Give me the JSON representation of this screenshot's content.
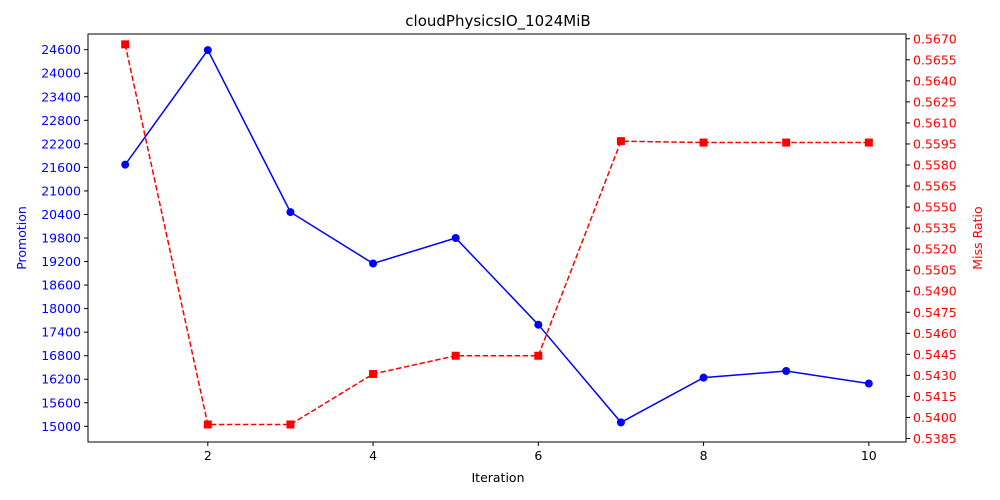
{
  "chart_data": {
    "type": "line",
    "title": "cloudPhysicsIO_1024MiB",
    "xlabel": "Iteration",
    "ylabel_left": "Promotion",
    "ylabel_right": "Miss Ratio",
    "x": [
      1,
      2,
      3,
      4,
      5,
      6,
      7,
      8,
      9,
      10
    ],
    "xlim": [
      0.55,
      10.45
    ],
    "x_ticks": [
      2,
      4,
      6,
      8,
      10
    ],
    "ylim_left": [
      14600,
      25000
    ],
    "y_ticks_left": [
      15000,
      15600,
      16200,
      16800,
      17400,
      18000,
      18600,
      19200,
      19800,
      20400,
      21000,
      21600,
      22200,
      22800,
      23400,
      24000,
      24600
    ],
    "ylim_right": [
      0.53825,
      0.56734
    ],
    "y_ticks_right": [
      "0.5385",
      "0.5400",
      "0.5415",
      "0.5430",
      "0.5445",
      "0.5460",
      "0.5475",
      "0.5490",
      "0.5505",
      "0.5520",
      "0.5535",
      "0.5550",
      "0.5565",
      "0.5580",
      "0.5595",
      "0.5610",
      "0.5625",
      "0.5640",
      "0.5655",
      "0.5670"
    ],
    "grid": false,
    "series": [
      {
        "axis": "left",
        "color": "#0000ff",
        "line_style": "solid",
        "marker": "circle",
        "values": [
          21670,
          24590,
          20460,
          19150,
          19800,
          17590,
          15100,
          16240,
          16410,
          16090
        ]
      },
      {
        "axis": "right",
        "color": "#ff0000",
        "line_style": "dashed",
        "marker": "square",
        "values": [
          0.5666,
          0.5395,
          0.5395,
          0.5431,
          0.5444,
          0.5444,
          0.5597,
          0.5596,
          0.5596,
          0.5596
        ]
      }
    ]
  }
}
